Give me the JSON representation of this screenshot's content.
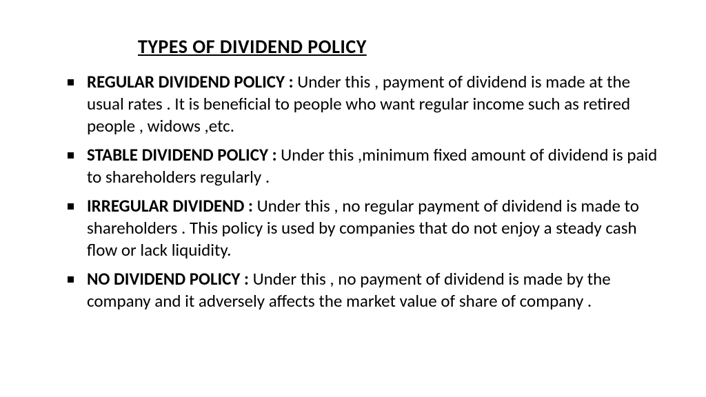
{
  "title": "TYPES OF DIVIDEND POLICY",
  "items": [
    {
      "term": "REGULAR DIVIDEND POLICY : ",
      "desc": "Under this , payment of dividend is made at the usual rates . It is beneficial to people who want regular income such as retired people , widows ,etc."
    },
    {
      "term": "STABLE DIVIDEND POLICY : ",
      "desc": "Under this ,minimum fixed amount of dividend is paid to shareholders regularly ."
    },
    {
      "term": "IRREGULAR DIVIDEND : ",
      "desc": "Under this , no regular payment of dividend is made to shareholders . This policy is used by companies that do not enjoy a steady cash flow or lack liquidity."
    },
    {
      "term": "NO DIVIDEND POLICY : ",
      "desc": "Under this , no payment of  dividend is made by the company and it adversely affects the market value of share of company ."
    }
  ],
  "style": {
    "background_color": "#ffffff",
    "text_color": "#000000",
    "title_fontsize": 28,
    "body_fontsize": 25,
    "font_family": "Calibri",
    "bullet_shape": "square",
    "bullet_color": "#000000"
  }
}
